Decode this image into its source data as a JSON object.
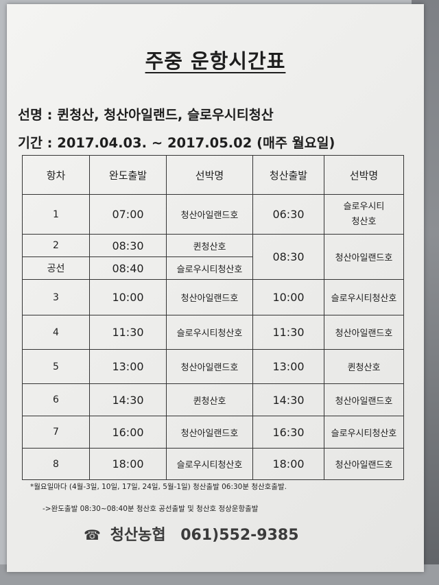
{
  "title": "주중 운항시간표",
  "vessels_label": "선명 : 퀸청산, 청산아일랜드, 슬로우시티청산",
  "period_label": "기간 : 2017.04.03. ~ 2017.05.02",
  "period_note": "(매주 월요일)",
  "table": {
    "headers": [
      "항차",
      "완도출발",
      "선박명",
      "청산출발",
      "선박명"
    ],
    "rows": [
      {
        "no": "1",
        "wando": "07:00",
        "ship1": "청산아일랜드호",
        "cheongsan": "06:30",
        "ship2_line1": "슬로우시티",
        "ship2_line2": "청산호"
      },
      {
        "no": "2",
        "wando": "08:30",
        "ship1": "퀸청산호"
      },
      {
        "no": "공선",
        "wando": "08:40",
        "ship1": "슬로우시티청산호",
        "cheongsan": "08:30",
        "ship2": "청산아일랜드호"
      },
      {
        "no": "3",
        "wando": "10:00",
        "ship1": "청산아일랜드호",
        "cheongsan": "10:00",
        "ship2": "슬로우시티청산호"
      },
      {
        "no": "4",
        "wando": "11:30",
        "ship1": "슬로우시티청산호",
        "cheongsan": "11:30",
        "ship2": "청산아일랜드호"
      },
      {
        "no": "5",
        "wando": "13:00",
        "ship1": "청산아일랜드호",
        "cheongsan": "13:00",
        "ship2": "퀸청산호"
      },
      {
        "no": "6",
        "wando": "14:30",
        "ship1": "퀸청산호",
        "cheongsan": "14:30",
        "ship2": "청산아일랜드호"
      },
      {
        "no": "7",
        "wando": "16:00",
        "ship1": "청산아일랜드호",
        "cheongsan": "16:30",
        "ship2": "슬로우시티청산호"
      },
      {
        "no": "8",
        "wando": "18:00",
        "ship1": "슬로우시티청산호",
        "cheongsan": "18:00",
        "ship2": "청산아일랜드호"
      }
    ]
  },
  "footnote1": "*월요일마다 (4월-3일, 10일, 17일, 24일, 5월-1일) 청산출발 06:30분 청산호출발.",
  "footnote2": "->완도출발 08:30~08:40분 청산호 공선출발 및 청산호 정상운항출발",
  "contact": {
    "icon": "phone-icon",
    "org": "청산농협",
    "phone": "061)552-9385"
  }
}
